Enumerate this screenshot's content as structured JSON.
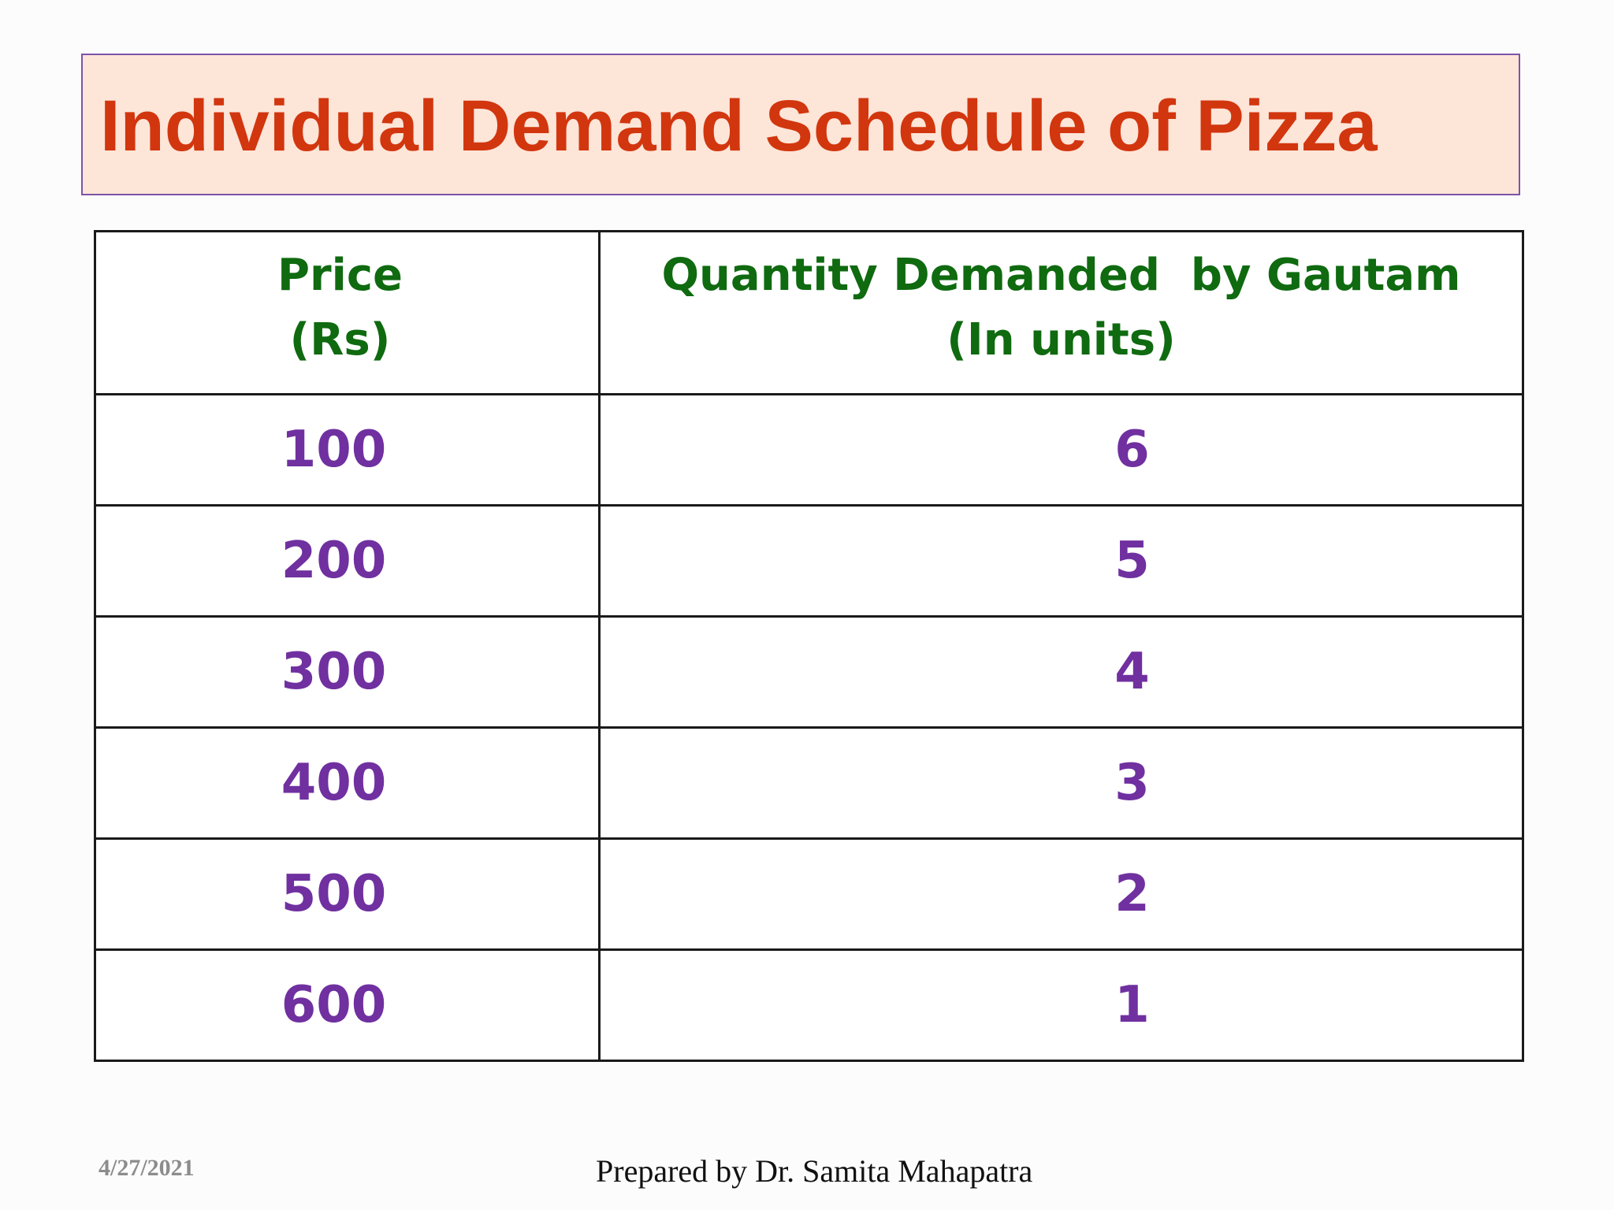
{
  "slide": {
    "title": "Individual Demand Schedule of Pizza"
  },
  "table": {
    "headers": {
      "price": [
        "Price",
        "(Rs)"
      ],
      "quantity": [
        "Quantity Demanded  by Gautam",
        "(In units)"
      ]
    },
    "rows": [
      {
        "price": "100",
        "quantity": "6"
      },
      {
        "price": "200",
        "quantity": "5"
      },
      {
        "price": "300",
        "quantity": "4"
      },
      {
        "price": "400",
        "quantity": "3"
      },
      {
        "price": "500",
        "quantity": "2"
      },
      {
        "price": "600",
        "quantity": "1"
      }
    ]
  },
  "footer": {
    "date": "4/27/2021",
    "credit": "Prepared by Dr. Samita Mahapatra"
  },
  "colors": {
    "title": "#d2360e",
    "title_background": "#fde5d8",
    "title_border": "#7b54a8",
    "header_text": "#0f6a10",
    "value_text": "#7030a0",
    "date_text": "#8c8c8c"
  }
}
